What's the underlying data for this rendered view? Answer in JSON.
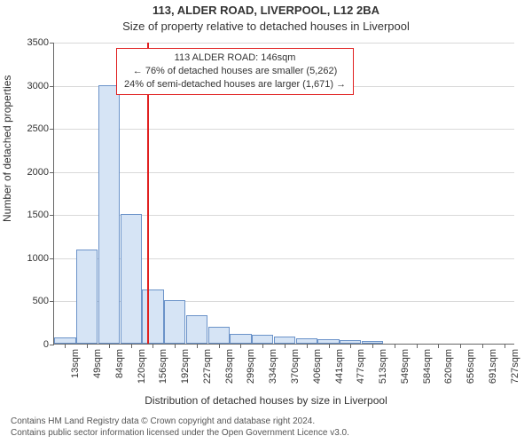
{
  "title_main": "113, ALDER ROAD, LIVERPOOL, L12 2BA",
  "title_sub": "Size of property relative to detached houses in Liverpool",
  "ylabel": "Number of detached properties",
  "xlabel": "Distribution of detached houses by size in Liverpool",
  "chart": {
    "type": "histogram",
    "ylim": [
      0,
      3500
    ],
    "ytick_step": 500,
    "grid_color": "#d9d9d9",
    "bar_fill": "#d6e4f5",
    "bar_stroke": "#6b93c9",
    "background_color": "#ffffff",
    "axis_color": "#666666",
    "tick_fontsize": 11,
    "label_fontsize": 12,
    "title_fontsize": 13,
    "categories": [
      "13sqm",
      "49sqm",
      "84sqm",
      "120sqm",
      "156sqm",
      "192sqm",
      "227sqm",
      "263sqm",
      "299sqm",
      "334sqm",
      "370sqm",
      "406sqm",
      "441sqm",
      "477sqm",
      "513sqm",
      "549sqm",
      "584sqm",
      "620sqm",
      "656sqm",
      "691sqm",
      "727sqm"
    ],
    "values": [
      75,
      1090,
      3000,
      1500,
      630,
      500,
      330,
      200,
      110,
      100,
      80,
      60,
      50,
      40,
      30,
      0,
      0,
      0,
      0,
      0,
      0
    ],
    "ref_line": {
      "value_sqm": 146,
      "color": "#e02020",
      "width": 2
    },
    "annotation": {
      "lines": [
        "113 ALDER ROAD: 146sqm",
        "← 76% of detached houses are smaller (5,262)",
        "24% of semi-detached houses are larger (1,671) →"
      ],
      "border_color": "#e02020",
      "background": "#ffffff",
      "fontsize": 11
    }
  },
  "attribution": {
    "line1": "Contains HM Land Registry data © Crown copyright and database right 2024.",
    "line2": "Contains public sector information licensed under the Open Government Licence v3.0."
  }
}
